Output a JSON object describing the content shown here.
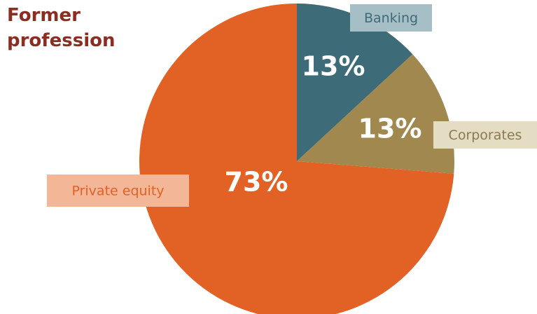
{
  "chart_data": {
    "type": "pie",
    "title": "Former profession",
    "categories": [
      "Banking",
      "Corporates",
      "Private equity"
    ],
    "values": [
      13,
      13,
      73
    ],
    "value_labels": [
      "13%",
      "13%",
      "73%"
    ],
    "colors": [
      "#3d6b77",
      "#a0884f",
      "#e26225"
    ]
  }
}
